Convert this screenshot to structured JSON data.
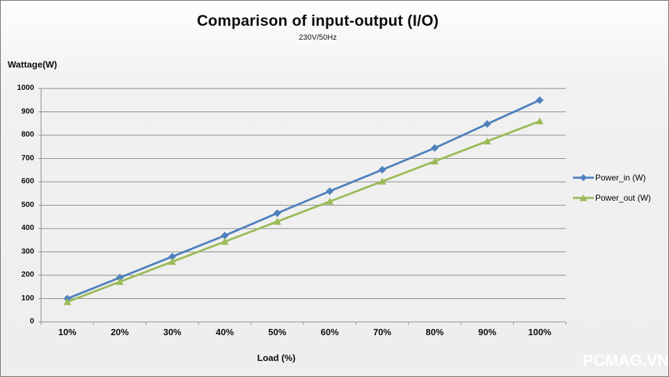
{
  "watermark": "PCMAG.VN",
  "chart_data": {
    "type": "line",
    "title": "Comparison of input-output (I/O)",
    "subtitle": "230V/50Hz",
    "xlabel": "Load (%)",
    "ylabel": "Wattage(W)",
    "categories": [
      "10%",
      "20%",
      "30%",
      "40%",
      "50%",
      "60%",
      "70%",
      "80%",
      "90%",
      "100%"
    ],
    "series": [
      {
        "name": "Power_in (W)",
        "color": "#4F81BD",
        "marker": "diamond",
        "values": [
          100,
          190,
          280,
          370,
          466,
          560,
          652,
          745,
          848,
          950
        ]
      },
      {
        "name": "Power_out (W)",
        "color": "#9BBB59",
        "marker": "triangle",
        "values": [
          86,
          172,
          258,
          344,
          430,
          516,
          602,
          688,
          774,
          860
        ]
      }
    ],
    "ylim": [
      0,
      1000
    ],
    "ytick_step": 100,
    "ytick_labels": [
      "0",
      "100",
      "200",
      "300",
      "400",
      "500",
      "600",
      "700",
      "800",
      "900",
      "1000"
    ],
    "grid": true,
    "gridline_color": "#8a8a8a",
    "axis_color": "#8a8a8a",
    "legend_position": "right"
  }
}
